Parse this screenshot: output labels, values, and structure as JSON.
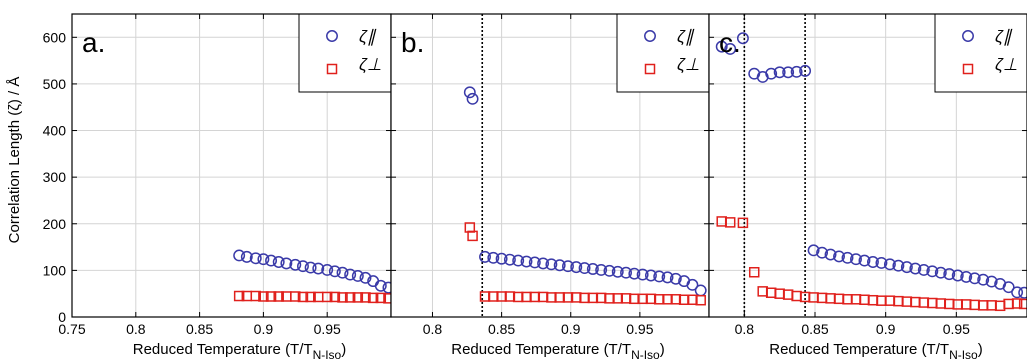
{
  "figure": {
    "ylabel": "Correlation Length (ζ) / Å",
    "xlabel_main": "Reduced Temperature (T/T",
    "xlabel_sub": "N-Iso",
    "xlabel_close": ")"
  },
  "colors": {
    "parallel": "#3a3aa8",
    "perpendicular": "#e0201c",
    "grid": "#d4d4d4",
    "axis": "#000000"
  },
  "chart_data": [
    {
      "type": "scatter",
      "panel_label": "a.",
      "xlim": [
        0.75,
        1.0
      ],
      "ylim": [
        0,
        650
      ],
      "xticks": [
        0.75,
        0.8,
        0.85,
        0.9,
        0.95
      ],
      "xtick_labels": [
        "0.75",
        "0.8",
        "0.85",
        "0.9",
        "0.95"
      ],
      "yticks": [
        0,
        100,
        200,
        300,
        400,
        500,
        600
      ],
      "ytick_labels": [
        "0",
        "100",
        "200",
        "300",
        "400",
        "500",
        "600"
      ],
      "grid": true,
      "legend_position": "top-right",
      "transition_lines": [],
      "series": [
        {
          "name": "ζ∥",
          "marker": "circle",
          "x": [
            0.881,
            0.887,
            0.894,
            0.9,
            0.906,
            0.912,
            0.918,
            0.925,
            0.931,
            0.937,
            0.943,
            0.95,
            0.956,
            0.962,
            0.968,
            0.974,
            0.98,
            0.986,
            0.992,
            0.998
          ],
          "y": [
            132,
            129,
            126,
            124,
            121,
            118,
            115,
            112,
            109,
            106,
            104,
            101,
            98,
            95,
            91,
            88,
            84,
            77,
            67,
            63
          ]
        },
        {
          "name": "ζ⊥",
          "marker": "square",
          "x": [
            0.881,
            0.887,
            0.894,
            0.9,
            0.906,
            0.912,
            0.918,
            0.925,
            0.931,
            0.937,
            0.943,
            0.95,
            0.956,
            0.962,
            0.968,
            0.974,
            0.98,
            0.986,
            0.992,
            0.998
          ],
          "y": [
            45,
            45,
            45,
            44,
            44,
            44,
            44,
            44,
            43,
            43,
            43,
            43,
            43,
            42,
            42,
            42,
            42,
            41,
            41,
            40
          ]
        }
      ]
    },
    {
      "type": "scatter",
      "panel_label": "b.",
      "xlim": [
        0.77,
        1.0
      ],
      "ylim": [
        0,
        650
      ],
      "xticks": [
        0.8,
        0.85,
        0.9,
        0.95
      ],
      "xtick_labels": [
        "0.8",
        "0.85",
        "0.9",
        "0.95"
      ],
      "yticks": [
        0,
        100,
        200,
        300,
        400,
        500,
        600
      ],
      "ytick_labels": [],
      "grid": true,
      "legend_position": "top-right",
      "transition_lines": [
        0.836
      ],
      "series": [
        {
          "name": "ζ∥",
          "marker": "circle",
          "x": [
            0.827,
            0.829,
            0.838,
            0.844,
            0.85,
            0.856,
            0.862,
            0.868,
            0.874,
            0.88,
            0.886,
            0.892,
            0.898,
            0.904,
            0.91,
            0.916,
            0.922,
            0.928,
            0.934,
            0.94,
            0.946,
            0.952,
            0.958,
            0.964,
            0.97,
            0.976,
            0.982,
            0.988,
            0.994
          ],
          "y": [
            482,
            468,
            129,
            127,
            125,
            123,
            121,
            119,
            117,
            115,
            113,
            111,
            109,
            107,
            105,
            103,
            101,
            99,
            97,
            95,
            93,
            91,
            89,
            87,
            85,
            82,
            77,
            69,
            57
          ]
        },
        {
          "name": "ζ⊥",
          "marker": "square",
          "x": [
            0.827,
            0.829,
            0.838,
            0.844,
            0.85,
            0.856,
            0.862,
            0.868,
            0.874,
            0.88,
            0.886,
            0.892,
            0.898,
            0.904,
            0.91,
            0.916,
            0.922,
            0.928,
            0.934,
            0.94,
            0.946,
            0.952,
            0.958,
            0.964,
            0.97,
            0.976,
            0.982,
            0.988,
            0.994
          ],
          "y": [
            192,
            174,
            44,
            44,
            44,
            44,
            43,
            43,
            43,
            43,
            42,
            42,
            42,
            42,
            41,
            41,
            41,
            40,
            40,
            40,
            39,
            39,
            39,
            38,
            38,
            38,
            37,
            37,
            36
          ]
        }
      ]
    },
    {
      "type": "scatter",
      "panel_label": "c.",
      "xlim": [
        0.775,
        1.0
      ],
      "ylim": [
        0,
        650
      ],
      "xticks": [
        0.8,
        0.85,
        0.9,
        0.95
      ],
      "xtick_labels": [
        "0.8",
        "0.85",
        "0.9",
        "0.95"
      ],
      "yticks": [
        0,
        100,
        200,
        300,
        400,
        500,
        600
      ],
      "ytick_labels": [],
      "grid": true,
      "legend_position": "top-right",
      "transition_lines": [
        0.8,
        0.843
      ],
      "series": [
        {
          "name": "ζ∥",
          "marker": "circle",
          "x": [
            0.784,
            0.79,
            0.799,
            0.807,
            0.813,
            0.819,
            0.825,
            0.831,
            0.837,
            0.843,
            0.849,
            0.855,
            0.861,
            0.867,
            0.873,
            0.879,
            0.885,
            0.891,
            0.897,
            0.903,
            0.909,
            0.915,
            0.921,
            0.927,
            0.933,
            0.939,
            0.945,
            0.951,
            0.957,
            0.963,
            0.969,
            0.975,
            0.981,
            0.987,
            0.993,
            0.998
          ],
          "y": [
            580,
            575,
            598,
            522,
            515,
            522,
            525,
            525,
            526,
            528,
            143,
            138,
            134,
            130,
            127,
            124,
            121,
            118,
            116,
            113,
            110,
            107,
            104,
            101,
            98,
            95,
            92,
            89,
            86,
            83,
            80,
            76,
            71,
            64,
            53,
            52
          ]
        },
        {
          "name": "ζ⊥",
          "marker": "square",
          "x": [
            0.784,
            0.79,
            0.799,
            0.807,
            0.813,
            0.819,
            0.825,
            0.831,
            0.837,
            0.843,
            0.849,
            0.855,
            0.861,
            0.867,
            0.873,
            0.879,
            0.885,
            0.891,
            0.897,
            0.903,
            0.909,
            0.915,
            0.921,
            0.927,
            0.933,
            0.939,
            0.945,
            0.951,
            0.957,
            0.963,
            0.969,
            0.975,
            0.981,
            0.987,
            0.993,
            0.998
          ],
          "y": [
            205,
            203,
            202,
            96,
            55,
            52,
            50,
            48,
            45,
            43,
            42,
            41,
            40,
            39,
            38,
            38,
            37,
            36,
            35,
            35,
            34,
            33,
            32,
            31,
            30,
            29,
            28,
            27,
            27,
            26,
            25,
            25,
            24,
            28,
            29,
            28
          ]
        }
      ]
    }
  ]
}
